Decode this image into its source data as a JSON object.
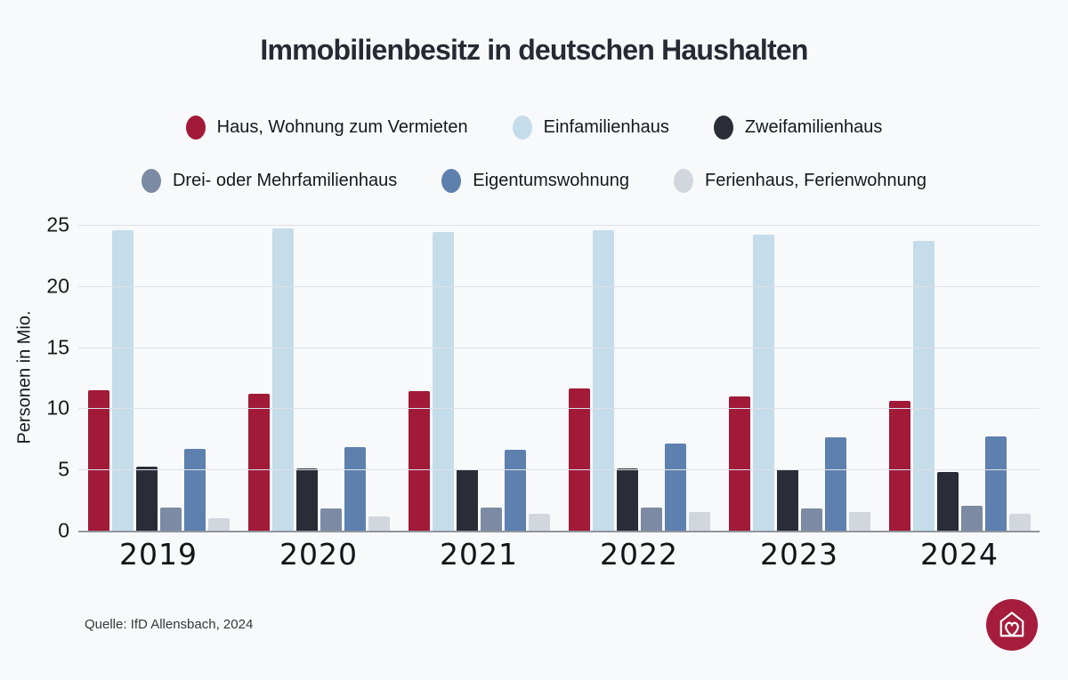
{
  "title": "Immobilienbesitz in deutschen Haushalten",
  "y_axis_title": "Personen in Mio.",
  "source": "Quelle: IfD Allensbach, 2024",
  "colors": {
    "background": "#f7f9fb",
    "baseline": "#8f969e",
    "gridline": "#dde2e8",
    "logo_background": "#a51c3c"
  },
  "chart_data": {
    "type": "bar",
    "title": "Immobilienbesitz in deutschen Haushalten",
    "xlabel": "",
    "ylabel": "Personen in Mio.",
    "ylim": [
      0,
      25
    ],
    "yticks": [
      0,
      5,
      10,
      15,
      20,
      25
    ],
    "grid": true,
    "legend_position": "top",
    "categories": [
      "2019",
      "2020",
      "2021",
      "2022",
      "2023",
      "2024"
    ],
    "series": [
      {
        "name": "Haus, Wohnung zum Vermieten",
        "color": "#a11a38",
        "values": [
          11.5,
          11.2,
          11.4,
          11.6,
          11.0,
          10.6
        ]
      },
      {
        "name": "Einfamilienhaus",
        "color": "#c5dcea",
        "values": [
          24.6,
          24.7,
          24.4,
          24.6,
          24.2,
          23.7
        ]
      },
      {
        "name": "Zweifamilienhaus",
        "color": "#2a2d37",
        "values": [
          5.2,
          5.1,
          5.0,
          5.1,
          5.0,
          4.8
        ]
      },
      {
        "name": "Drei- oder Mehrfamilienhaus",
        "color": "#7c8ba3",
        "values": [
          1.9,
          1.8,
          1.9,
          1.9,
          1.8,
          2.0
        ]
      },
      {
        "name": "Eigentumswohnung",
        "color": "#5d80ae",
        "values": [
          6.7,
          6.8,
          6.6,
          7.1,
          7.6,
          7.7
        ]
      },
      {
        "name": "Ferienhaus, Ferienwohnung",
        "color": "#d2d6dd",
        "values": [
          1.0,
          1.2,
          1.4,
          1.5,
          1.5,
          1.4
        ]
      }
    ]
  }
}
